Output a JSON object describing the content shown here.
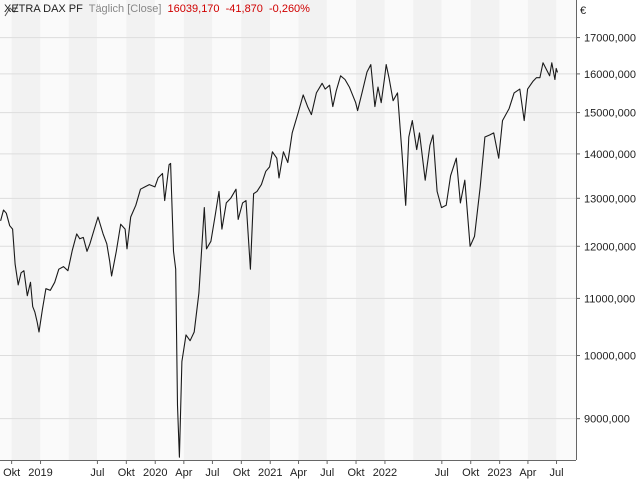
{
  "header": {
    "symbol": "XETRA DAX PF",
    "frequency": "Täglich [Close]",
    "last": "16039,170",
    "change": "-41,870",
    "change_pct": "-0,260%"
  },
  "colors": {
    "line": "#1a1a1a",
    "negative": "#d00000",
    "band": "#f2f2f2",
    "grid": "#dddddd"
  },
  "chart_data": {
    "type": "line",
    "currency": "€",
    "y_axis_position": "right",
    "y_scale": "log",
    "ylim": [
      8400,
      18100
    ],
    "yticks": [
      {
        "value": 9000,
        "label": "9000,000"
      },
      {
        "value": 10000,
        "label": "10000,000"
      },
      {
        "value": 11000,
        "label": "11000,000"
      },
      {
        "value": 12000,
        "label": "12000,000"
      },
      {
        "value": 13000,
        "label": "13000,000"
      },
      {
        "value": 14000,
        "label": "14000,000"
      },
      {
        "value": 15000,
        "label": "15000,000"
      },
      {
        "value": 16000,
        "label": "16000,000"
      },
      {
        "value": 17000,
        "label": "17000,000"
      }
    ],
    "xlim": [
      "2018-08-25",
      "2023-09-01"
    ],
    "xticks": [
      {
        "date": "2018-10-01",
        "label": "Okt"
      },
      {
        "date": "2019-01-01",
        "label": "2019"
      },
      {
        "date": "2019-07-01",
        "label": "Jul"
      },
      {
        "date": "2019-10-01",
        "label": "Okt"
      },
      {
        "date": "2020-01-01",
        "label": "2020"
      },
      {
        "date": "2020-04-01",
        "label": "Apr"
      },
      {
        "date": "2020-07-01",
        "label": "Jul"
      },
      {
        "date": "2020-10-01",
        "label": "Okt"
      },
      {
        "date": "2021-01-01",
        "label": "2021"
      },
      {
        "date": "2021-04-01",
        "label": "Apr"
      },
      {
        "date": "2021-07-01",
        "label": "Jul"
      },
      {
        "date": "2021-10-01",
        "label": "Okt"
      },
      {
        "date": "2022-01-01",
        "label": "2022"
      },
      {
        "date": "2022-07-01",
        "label": "Jul"
      },
      {
        "date": "2022-10-01",
        "label": "Okt"
      },
      {
        "date": "2023-01-01",
        "label": "2023"
      },
      {
        "date": "2023-04-01",
        "label": "Apr"
      },
      {
        "date": "2023-07-01",
        "label": "Jul"
      }
    ],
    "shaded_bands": [
      [
        "2018-10-01",
        "2018-12-31"
      ],
      [
        "2019-04-01",
        "2019-06-30"
      ],
      [
        "2019-10-01",
        "2019-12-31"
      ],
      [
        "2020-04-01",
        "2020-06-30"
      ],
      [
        "2020-10-01",
        "2020-12-31"
      ],
      [
        "2021-04-01",
        "2021-06-30"
      ],
      [
        "2021-10-01",
        "2021-12-31"
      ],
      [
        "2022-04-01",
        "2022-06-30"
      ],
      [
        "2022-10-01",
        "2022-12-31"
      ],
      [
        "2023-04-01",
        "2023-06-30"
      ]
    ],
    "series": [
      {
        "points": [
          [
            "2018-08-27",
            12520
          ],
          [
            "2018-09-05",
            12750
          ],
          [
            "2018-09-14",
            12680
          ],
          [
            "2018-09-25",
            12420
          ],
          [
            "2018-10-04",
            12350
          ],
          [
            "2018-10-12",
            11650
          ],
          [
            "2018-10-22",
            11250
          ],
          [
            "2018-10-31",
            11480
          ],
          [
            "2018-11-09",
            11520
          ],
          [
            "2018-11-20",
            11050
          ],
          [
            "2018-11-30",
            11300
          ],
          [
            "2018-12-07",
            10850
          ],
          [
            "2018-12-14",
            10750
          ],
          [
            "2018-12-21",
            10580
          ],
          [
            "2018-12-27",
            10400
          ],
          [
            "2019-01-07",
            10800
          ],
          [
            "2019-01-18",
            11180
          ],
          [
            "2019-02-01",
            11150
          ],
          [
            "2019-02-15",
            11300
          ],
          [
            "2019-02-28",
            11550
          ],
          [
            "2019-03-15",
            11600
          ],
          [
            "2019-03-29",
            11520
          ],
          [
            "2019-04-12",
            11920
          ],
          [
            "2019-04-26",
            12250
          ],
          [
            "2019-05-06",
            12150
          ],
          [
            "2019-05-17",
            12180
          ],
          [
            "2019-05-29",
            11900
          ],
          [
            "2019-06-07",
            12050
          ],
          [
            "2019-06-21",
            12350
          ],
          [
            "2019-07-03",
            12600
          ],
          [
            "2019-07-19",
            12250
          ],
          [
            "2019-07-31",
            12050
          ],
          [
            "2019-08-09",
            11700
          ],
          [
            "2019-08-15",
            11420
          ],
          [
            "2019-08-30",
            11900
          ],
          [
            "2019-09-13",
            12450
          ],
          [
            "2019-09-27",
            12350
          ],
          [
            "2019-10-03",
            11950
          ],
          [
            "2019-10-15",
            12600
          ],
          [
            "2019-10-31",
            12850
          ],
          [
            "2019-11-15",
            13200
          ],
          [
            "2019-11-29",
            13250
          ],
          [
            "2019-12-13",
            13300
          ],
          [
            "2019-12-31",
            13250
          ],
          [
            "2020-01-10",
            13450
          ],
          [
            "2020-01-24",
            13550
          ],
          [
            "2020-01-31",
            12950
          ],
          [
            "2020-02-14",
            13750
          ],
          [
            "2020-02-19",
            13780
          ],
          [
            "2020-02-28",
            11900
          ],
          [
            "2020-03-06",
            11550
          ],
          [
            "2020-03-12",
            9200
          ],
          [
            "2020-03-18",
            8440
          ],
          [
            "2020-03-26",
            9900
          ],
          [
            "2020-04-08",
            10350
          ],
          [
            "2020-04-21",
            10250
          ],
          [
            "2020-05-04",
            10400
          ],
          [
            "2020-05-19",
            11100
          ],
          [
            "2020-06-05",
            12800
          ],
          [
            "2020-06-12",
            11950
          ],
          [
            "2020-06-26",
            12100
          ],
          [
            "2020-07-10",
            12650
          ],
          [
            "2020-07-22",
            13150
          ],
          [
            "2020-07-31",
            12350
          ],
          [
            "2020-08-14",
            12900
          ],
          [
            "2020-08-28",
            13000
          ],
          [
            "2020-09-14",
            13200
          ],
          [
            "2020-09-21",
            12550
          ],
          [
            "2020-10-05",
            12900
          ],
          [
            "2020-10-16",
            12950
          ],
          [
            "2020-10-30",
            11550
          ],
          [
            "2020-11-09",
            13100
          ],
          [
            "2020-11-20",
            13150
          ],
          [
            "2020-12-04",
            13300
          ],
          [
            "2020-12-18",
            13600
          ],
          [
            "2020-12-30",
            13700
          ],
          [
            "2021-01-08",
            14050
          ],
          [
            "2021-01-22",
            13900
          ],
          [
            "2021-01-29",
            13450
          ],
          [
            "2021-02-12",
            14050
          ],
          [
            "2021-02-26",
            13800
          ],
          [
            "2021-03-12",
            14500
          ],
          [
            "2021-03-31",
            15000
          ],
          [
            "2021-04-16",
            15450
          ],
          [
            "2021-04-30",
            15150
          ],
          [
            "2021-05-12",
            14950
          ],
          [
            "2021-05-28",
            15500
          ],
          [
            "2021-06-15",
            15750
          ],
          [
            "2021-06-25",
            15600
          ],
          [
            "2021-07-09",
            15700
          ],
          [
            "2021-07-19",
            15150
          ],
          [
            "2021-07-30",
            15550
          ],
          [
            "2021-08-13",
            15950
          ],
          [
            "2021-08-27",
            15850
          ],
          [
            "2021-09-10",
            15650
          ],
          [
            "2021-09-30",
            15250
          ],
          [
            "2021-10-06",
            15050
          ],
          [
            "2021-10-20",
            15500
          ],
          [
            "2021-11-05",
            16050
          ],
          [
            "2021-11-17",
            16250
          ],
          [
            "2021-11-30",
            15150
          ],
          [
            "2021-12-10",
            15650
          ],
          [
            "2021-12-20",
            15250
          ],
          [
            "2021-12-31",
            15900
          ],
          [
            "2022-01-05",
            16250
          ],
          [
            "2022-01-14",
            15900
          ],
          [
            "2022-01-27",
            15300
          ],
          [
            "2022-02-10",
            15500
          ],
          [
            "2022-02-24",
            14050
          ],
          [
            "2022-03-08",
            12850
          ],
          [
            "2022-03-18",
            14400
          ],
          [
            "2022-03-29",
            14800
          ],
          [
            "2022-04-12",
            14100
          ],
          [
            "2022-04-21",
            14500
          ],
          [
            "2022-05-09",
            13400
          ],
          [
            "2022-05-24",
            14200
          ],
          [
            "2022-06-03",
            14450
          ],
          [
            "2022-06-16",
            13150
          ],
          [
            "2022-06-30",
            12800
          ],
          [
            "2022-07-15",
            12850
          ],
          [
            "2022-07-29",
            13500
          ],
          [
            "2022-08-16",
            13900
          ],
          [
            "2022-08-29",
            12900
          ],
          [
            "2022-09-12",
            13400
          ],
          [
            "2022-09-29",
            12000
          ],
          [
            "2022-10-13",
            12200
          ],
          [
            "2022-10-31",
            13250
          ],
          [
            "2022-11-15",
            14400
          ],
          [
            "2022-11-30",
            14450
          ],
          [
            "2022-12-13",
            14500
          ],
          [
            "2022-12-29",
            13900
          ],
          [
            "2023-01-10",
            14800
          ],
          [
            "2023-01-31",
            15100
          ],
          [
            "2023-02-16",
            15500
          ],
          [
            "2023-03-06",
            15600
          ],
          [
            "2023-03-20",
            14800
          ],
          [
            "2023-03-31",
            15600
          ],
          [
            "2023-04-17",
            15800
          ],
          [
            "2023-04-28",
            15900
          ],
          [
            "2023-05-09",
            15900
          ],
          [
            "2023-05-19",
            16300
          ],
          [
            "2023-06-09",
            15950
          ],
          [
            "2023-06-16",
            16300
          ],
          [
            "2023-06-26",
            15850
          ],
          [
            "2023-06-30",
            16147
          ],
          [
            "2023-07-04",
            16039
          ]
        ]
      }
    ]
  }
}
